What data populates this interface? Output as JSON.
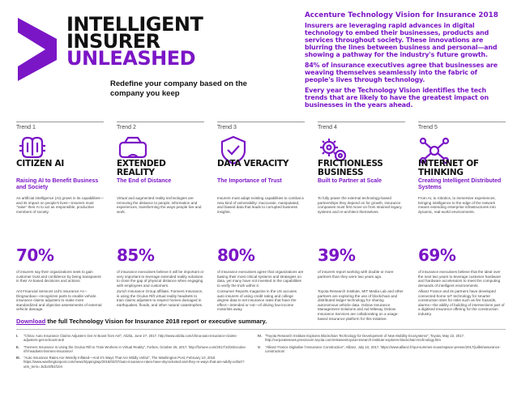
{
  "colors": {
    "accent": "#7b16c6",
    "text": "#111111"
  },
  "hero": {
    "title_line1": "INTELLIGENT",
    "title_line2": "INSURER",
    "title_line3": "UNLEASHED",
    "subtitle": "Redefine your company based on the company you keep"
  },
  "intro": {
    "title": "Accenture Technology Vision for Insurance 2018",
    "p1": "Insurers are leveraging rapid advances in digital technology to embed their businesses, products and services throughout society. These innovations are blurring the lines between business and personal—and showing a pathway for the industry's future growth.",
    "p2": "84% of insurance executives agree that businesses are weaving themselves seamlessly into the fabric of people's lives through technology.",
    "p3": "Every year the Technology Vision identifies the tech trends that are likely to have the greatest impact on businesses in the years ahead."
  },
  "trends": [
    {
      "label": "Trend 1",
      "icon": "ai-brain-icon",
      "title": "CITIZEN AI",
      "subtitle": "Raising AI to Benefit Business and Society",
      "body": "As artificial intelligence (AI) grows in its capabilities—and its impact on people's lives—insurers must \"raise\" their AI to act as responsible, productive members of society.",
      "pct": "70%",
      "pct_text": "of insurers say their organizations seek to gain customer trust and confidence by being transparent in their AI-based decisions and actions.",
      "extra": "Ant Financial Services Ltd's insurance AI—Dingsunbao—recognizes parts to enable vehicle insurance claims adjusters to make more standardized and objective assessments of external vehicle damage."
    },
    {
      "label": "Trend 2",
      "icon": "vr-headset-icon",
      "title": "EXTENDED REALITY",
      "subtitle": "The End of Distance",
      "body": "Virtual and augmented reality technologies are removing the distance to people, information and experiences, transforming the ways people live and work.",
      "pct": "85%",
      "pct_text": "of insurance executives believe it will be important or very important to leverage extended reality solutions to close the gap of physical distance when engaging with employees and customers.",
      "extra": "Zurich Insurance Group affiliate, Farmers Insurance, is using the Oculus Rift virtual reality headsets to train claims adjusters to inspect homes damaged in earthquakes, floods, and other natural catastrophes."
    },
    {
      "label": "Trend 3",
      "icon": "shield-check-icon",
      "title": "DATA VERACITY",
      "subtitle": "The Importance of Trust",
      "body": "Insurers must adapt existing capabilities to combat a new kind of vulnerability: inaccurate, manipulated, and biased data that leads to corrupted business insights.",
      "pct": "80%",
      "pct_text": "of insurance executives agree that organizations are basing their most critical systems and strategies on data, yet many have not invested in the capabilities to verify the truth within it.",
      "extra": "Consumer Reports magazine in the US accuses auto insurers of using credit rating and college degree data to set insurance rates that have the effect—intended or not—of driving low-income motorists away."
    },
    {
      "label": "Trend 4",
      "icon": "gears-icon",
      "title": "FRICTIONLESS BUSINESS",
      "subtitle": "Built to Partner at Scale",
      "body": "To fully power the external technology-based partnerships they depend on for growth, insurance companies must first move on from strained legacy systems and re-architect themselves.",
      "pct": "39%",
      "pct_text": "of insurers report working with double or more partners than they were two years ago.",
      "extra": "Toyota Research Institute, MIT Media Lab and other partners are exploring the use of blockchain and distributed ledger technology for sharing autonomous vehicle data. Oxbow Insurance Management Solutions and Aid Milesay Oxbow Insurance Services are collaborating on a usage-based insurance platform for this initiative."
    },
    {
      "label": "Trend 5",
      "icon": "network-brain-icon",
      "title": "INTERNET OF THINKING",
      "subtitle": "Creating Intelligent Distributed Systems",
      "body": "From AI, to robotics, to immersive experiences, bringing intelligence to the edge of the network means extending enterprise infrastructures into dynamic, real-world environments.",
      "pct": "69%",
      "pct_text": "of insurance executives believe that the ideal over the next two years to leverage customer hardware and hardware accelerators to meet the computing demands of intelligent environments.",
      "extra": "Allianz France and its partners have developed connected-home IoT technology for smarter construction sites for risks such as fire hazards, alarms—the ability of building of intersections part of a digitised insurance offering for the construction industry."
    }
  ],
  "download": {
    "link": "Download",
    "text": " the full Technology Vision for Insurance 2018 report or executive summary."
  },
  "references_left": [
    {
      "num": "I.",
      "text": "\"China: Auto Insurance Claims Adjusters Get AI Boost from Ant\", Alizila, June 27, 2017. http://www.alizila.com/china-auto-insurance-claims-adjusters-get-ai-boost-ant/"
    },
    {
      "num": "II.",
      "text": "\"Farmers Insurance Is Using the Oculus Rift to Train Workers in Virtual Reality\", Forbes, October 26, 2017. http://fortune.com/2017/10/26/oculus-rift-headsets-farmers-insurance/"
    },
    {
      "num": "III.",
      "text": "\"Auto Insurance Rates Are Weirdly Inflated—And It's Ways That Are Wildly Unfair\", The Washington Post, February 10, 2018 https://www.washingtonpost.com/news/tripping/wp/2018/02/07/auto-insurance-rates-have-skyrocketed-and-they-re-ways-that-are-wildly-unfair/?utm_term=.bd1c5f51f104"
    }
  ],
  "references_right": [
    {
      "num": "IV.",
      "text": "\"Toyota Research Institute Explores Blockchain Technology for Development of New Mobility Ecosystems\", Toyota, May 22, 2017. http://corporatenews.pressroom.toyota.com/releases/toyota-research-institute-explores-blockchain-technology.htm"
    },
    {
      "num": "V.",
      "text": "\"Allianz France Digitalise l'Assurance Construction\", Allianz, July 10, 2017. https://www.allianz.fr/qui-sommes-nous/espace-presse/2017/juillet/assurance-construction/"
    }
  ]
}
